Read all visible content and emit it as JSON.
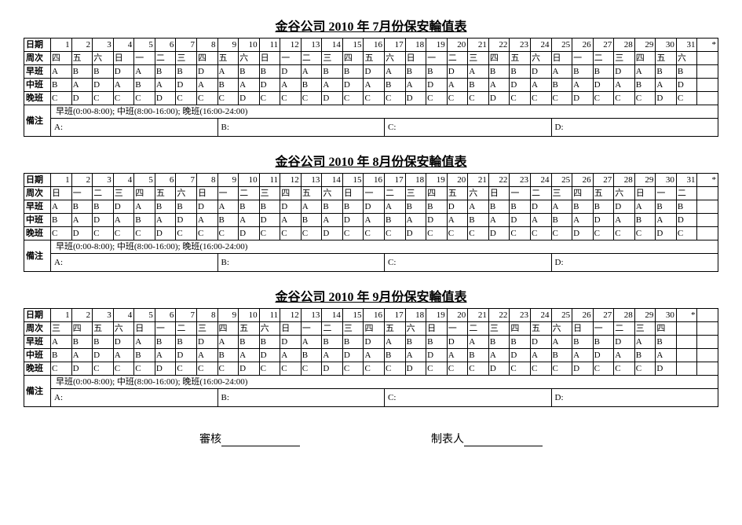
{
  "company": "金谷公司",
  "year": "2010",
  "row_labels": {
    "date": "日期",
    "weekday": "周次",
    "morning": "早班",
    "mid": "中班",
    "night": "晚班",
    "remark": "備注"
  },
  "shift_legend": "早班(0:00-8:00);  中班(8:00-16:00);  晚班(16:00-24:00)",
  "people_labels": {
    "a": "A:",
    "b": "B:",
    "c": "C:",
    "d": "D:"
  },
  "footer": {
    "review": "審核",
    "maker": "制表人"
  },
  "tables": [
    {
      "month": "7",
      "dates": [
        "1",
        "2",
        "3",
        "4",
        "5",
        "6",
        "7",
        "8",
        "9",
        "10",
        "11",
        "12",
        "13",
        "14",
        "15",
        "16",
        "17",
        "18",
        "19",
        "20",
        "21",
        "22",
        "23",
        "24",
        "25",
        "26",
        "27",
        "28",
        "29",
        "30",
        "31",
        "*"
      ],
      "weekdays": [
        "四",
        "五",
        "六",
        "日",
        "一",
        "二",
        "三",
        "四",
        "五",
        "六",
        "日",
        "一",
        "二",
        "三",
        "四",
        "五",
        "六",
        "日",
        "一",
        "二",
        "三",
        "四",
        "五",
        "六",
        "日",
        "一",
        "二",
        "三",
        "四",
        "五",
        "六",
        ""
      ],
      "morning": [
        "A",
        "B",
        "B",
        "D",
        "A",
        "B",
        "B",
        "D",
        "A",
        "B",
        "B",
        "D",
        "A",
        "B",
        "B",
        "D",
        "A",
        "B",
        "B",
        "D",
        "A",
        "B",
        "B",
        "D",
        "A",
        "B",
        "B",
        "D",
        "A",
        "B",
        "B",
        ""
      ],
      "mid": [
        "B",
        "A",
        "D",
        "A",
        "B",
        "A",
        "D",
        "A",
        "B",
        "A",
        "D",
        "A",
        "B",
        "A",
        "D",
        "A",
        "B",
        "A",
        "D",
        "A",
        "B",
        "A",
        "D",
        "A",
        "B",
        "A",
        "D",
        "A",
        "B",
        "A",
        "D",
        ""
      ],
      "night": [
        "C",
        "D",
        "C",
        "C",
        "C",
        "D",
        "C",
        "C",
        "C",
        "D",
        "C",
        "C",
        "C",
        "D",
        "C",
        "C",
        "C",
        "D",
        "C",
        "C",
        "C",
        "D",
        "C",
        "C",
        "C",
        "D",
        "C",
        "C",
        "C",
        "D",
        "C",
        ""
      ]
    },
    {
      "month": "8",
      "dates": [
        "1",
        "2",
        "3",
        "4",
        "5",
        "6",
        "7",
        "8",
        "9",
        "10",
        "11",
        "12",
        "13",
        "14",
        "15",
        "16",
        "17",
        "18",
        "19",
        "20",
        "21",
        "22",
        "23",
        "24",
        "25",
        "26",
        "27",
        "28",
        "29",
        "30",
        "31",
        "*"
      ],
      "weekdays": [
        "日",
        "一",
        "二",
        "三",
        "四",
        "五",
        "六",
        "日",
        "一",
        "二",
        "三",
        "四",
        "五",
        "六",
        "日",
        "一",
        "二",
        "三",
        "四",
        "五",
        "六",
        "日",
        "一",
        "二",
        "三",
        "四",
        "五",
        "六",
        "日",
        "一",
        "二",
        ""
      ],
      "morning": [
        "A",
        "B",
        "B",
        "D",
        "A",
        "B",
        "B",
        "D",
        "A",
        "B",
        "B",
        "D",
        "A",
        "B",
        "B",
        "D",
        "A",
        "B",
        "B",
        "D",
        "A",
        "B",
        "B",
        "D",
        "A",
        "B",
        "B",
        "D",
        "A",
        "B",
        "B",
        ""
      ],
      "mid": [
        "B",
        "A",
        "D",
        "A",
        "B",
        "A",
        "D",
        "A",
        "B",
        "A",
        "D",
        "A",
        "B",
        "A",
        "D",
        "A",
        "B",
        "A",
        "D",
        "A",
        "B",
        "A",
        "D",
        "A",
        "B",
        "A",
        "D",
        "A",
        "B",
        "A",
        "D",
        ""
      ],
      "night": [
        "C",
        "D",
        "C",
        "C",
        "C",
        "D",
        "C",
        "C",
        "C",
        "D",
        "C",
        "C",
        "C",
        "D",
        "C",
        "C",
        "C",
        "D",
        "C",
        "C",
        "C",
        "D",
        "C",
        "C",
        "C",
        "D",
        "C",
        "C",
        "C",
        "D",
        "C",
        ""
      ]
    },
    {
      "month": "9",
      "dates": [
        "1",
        "2",
        "3",
        "4",
        "5",
        "6",
        "7",
        "8",
        "9",
        "10",
        "11",
        "12",
        "13",
        "14",
        "15",
        "16",
        "17",
        "18",
        "19",
        "20",
        "21",
        "22",
        "23",
        "24",
        "25",
        "26",
        "27",
        "28",
        "29",
        "30",
        "*",
        ""
      ],
      "weekdays": [
        "三",
        "四",
        "五",
        "六",
        "日",
        "一",
        "二",
        "三",
        "四",
        "五",
        "六",
        "日",
        "一",
        "二",
        "三",
        "四",
        "五",
        "六",
        "日",
        "一",
        "二",
        "三",
        "四",
        "五",
        "六",
        "日",
        "一",
        "二",
        "三",
        "四",
        "",
        ""
      ],
      "morning": [
        "A",
        "B",
        "B",
        "D",
        "A",
        "B",
        "B",
        "D",
        "A",
        "B",
        "B",
        "D",
        "A",
        "B",
        "B",
        "D",
        "A",
        "B",
        "B",
        "D",
        "A",
        "B",
        "B",
        "D",
        "A",
        "B",
        "B",
        "D",
        "A",
        "B",
        "",
        ""
      ],
      "mid": [
        "B",
        "A",
        "D",
        "A",
        "B",
        "A",
        "D",
        "A",
        "B",
        "A",
        "D",
        "A",
        "B",
        "A",
        "D",
        "A",
        "B",
        "A",
        "D",
        "A",
        "B",
        "A",
        "D",
        "A",
        "B",
        "A",
        "D",
        "A",
        "B",
        "A",
        "",
        ""
      ],
      "night": [
        "C",
        "D",
        "C",
        "C",
        "C",
        "D",
        "C",
        "C",
        "C",
        "D",
        "C",
        "C",
        "C",
        "D",
        "C",
        "C",
        "C",
        "D",
        "C",
        "C",
        "C",
        "D",
        "C",
        "C",
        "C",
        "D",
        "C",
        "C",
        "C",
        "D",
        "",
        ""
      ]
    }
  ]
}
